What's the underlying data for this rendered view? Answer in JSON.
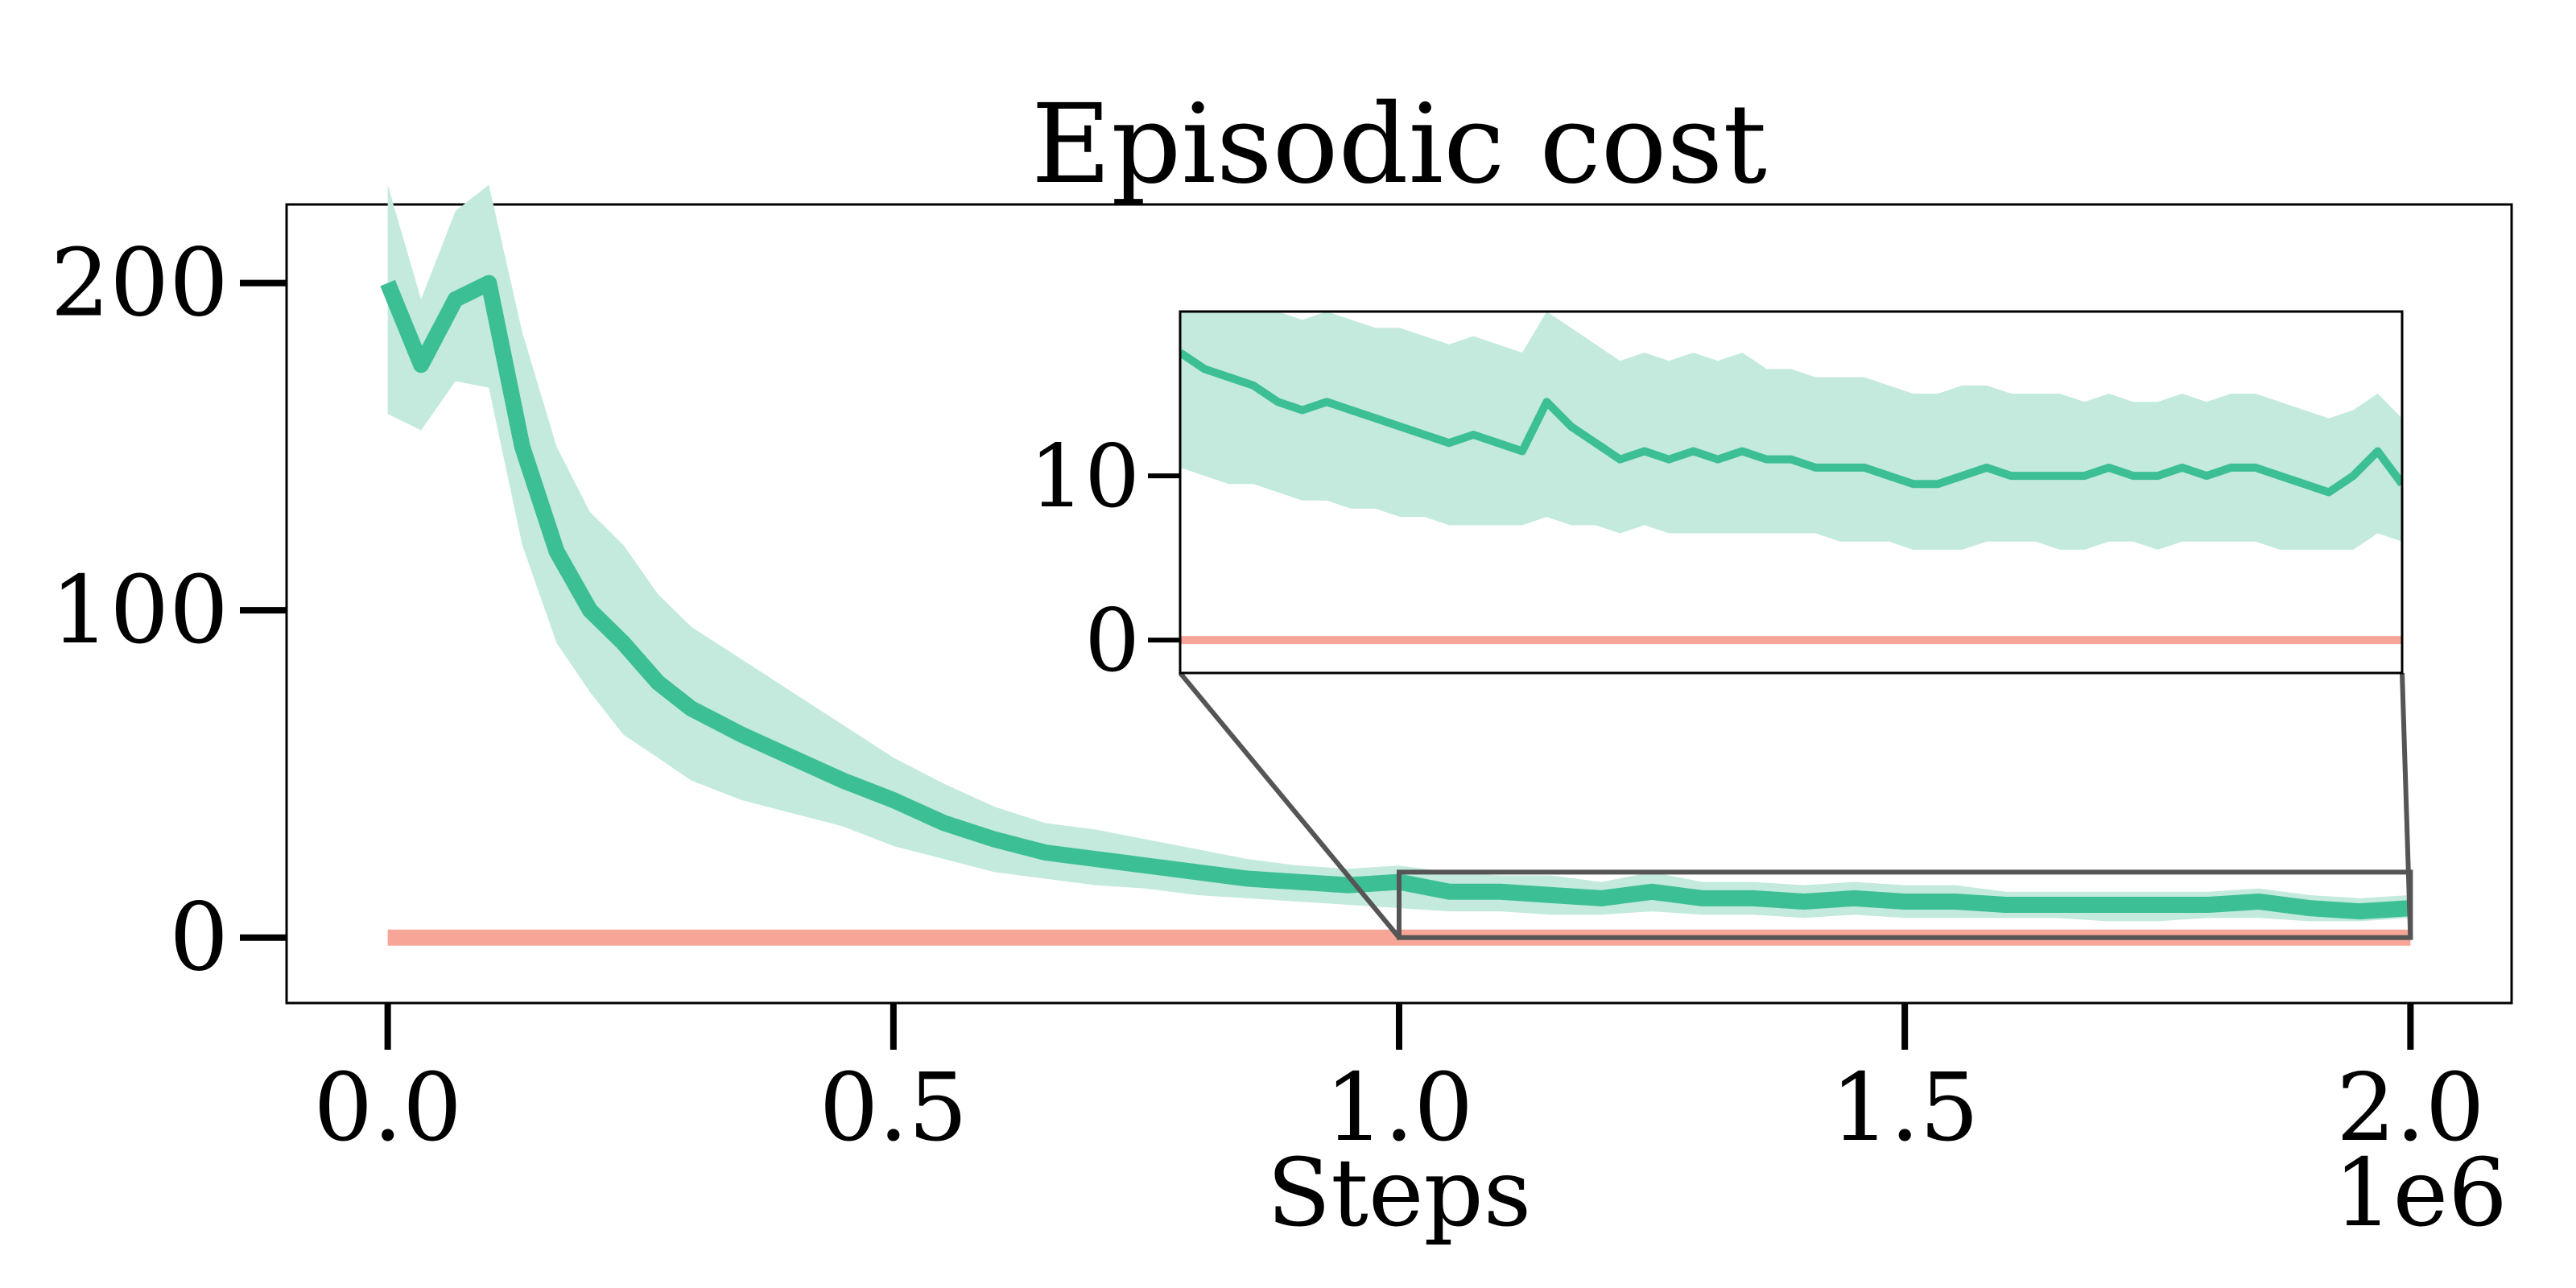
{
  "chart_data": {
    "type": "line",
    "title": "Episodic cost",
    "xlabel": "Steps",
    "ylabel": "",
    "x_offset_label": "1e6",
    "xlim": [
      -0.1,
      2.1
    ],
    "ylim": [
      -20,
      224
    ],
    "xticks": [
      0.0,
      0.5,
      1.0,
      1.5,
      2.0
    ],
    "xtick_labels": [
      "0.0",
      "0.5",
      "1.0",
      "1.5",
      "2.0"
    ],
    "yticks": [
      0,
      100,
      200
    ],
    "ytick_labels": [
      "0",
      "100",
      "200"
    ],
    "grid": false,
    "legend": "none",
    "colors": {
      "main": "#3dbf96",
      "band": "#c3eadc",
      "limit": "#f7a596",
      "zoom_box": "#555555"
    },
    "x": [
      0.0,
      0.033,
      0.067,
      0.1,
      0.133,
      0.167,
      0.2,
      0.233,
      0.267,
      0.3,
      0.35,
      0.4,
      0.45,
      0.5,
      0.55,
      0.6,
      0.65,
      0.7,
      0.75,
      0.8,
      0.85,
      0.9,
      0.95,
      1.0,
      1.05,
      1.1,
      1.15,
      1.2,
      1.25,
      1.3,
      1.35,
      1.4,
      1.45,
      1.5,
      1.55,
      1.6,
      1.65,
      1.7,
      1.75,
      1.8,
      1.85,
      1.9,
      1.95,
      2.0
    ],
    "series": [
      {
        "values": [
          200,
          175,
          195,
          200,
          150,
          118,
          100,
          90,
          78,
          70,
          62,
          55,
          48,
          42,
          35,
          30,
          26,
          24,
          22,
          20,
          18,
          17,
          16,
          17,
          14,
          14,
          13,
          12,
          14,
          12,
          12,
          11,
          12,
          11,
          11,
          10,
          10,
          10,
          10,
          10,
          11,
          9,
          8,
          9
        ]
      },
      {
        "values": [
          0,
          0,
          0,
          0,
          0,
          0,
          0,
          0,
          0,
          0,
          0,
          0,
          0,
          0,
          0,
          0,
          0,
          0,
          0,
          0,
          0,
          0,
          0,
          0,
          0,
          0,
          0,
          0,
          0,
          0,
          0,
          0,
          0,
          0,
          0,
          0,
          0,
          0,
          0,
          0,
          0,
          0,
          0,
          0
        ]
      }
    ],
    "band": {
      "lower": [
        160,
        155,
        170,
        168,
        120,
        90,
        75,
        62,
        55,
        48,
        42,
        38,
        34,
        28,
        24,
        20,
        18,
        16,
        15,
        13,
        12,
        11,
        10,
        9,
        8,
        8,
        7,
        7,
        8,
        7,
        7,
        6,
        7,
        6,
        6,
        6,
        6,
        5,
        5,
        6,
        6,
        5,
        5,
        6
      ],
      "upper": [
        230,
        195,
        222,
        230,
        185,
        150,
        130,
        120,
        105,
        95,
        85,
        75,
        65,
        55,
        47,
        40,
        35,
        33,
        30,
        27,
        24,
        22,
        21,
        22,
        20,
        19,
        19,
        17,
        20,
        17,
        17,
        16,
        17,
        16,
        16,
        14,
        14,
        14,
        14,
        14,
        15,
        13,
        12,
        13
      ]
    },
    "inset": {
      "xlim": [
        1.0,
        2.0
      ],
      "ylim": [
        -2,
        20
      ],
      "yticks": [
        0,
        10
      ],
      "ytick_labels": [
        "0",
        "10"
      ],
      "x": [
        1.0,
        1.02,
        1.04,
        1.06,
        1.08,
        1.1,
        1.12,
        1.14,
        1.16,
        1.18,
        1.2,
        1.22,
        1.24,
        1.26,
        1.28,
        1.3,
        1.32,
        1.34,
        1.36,
        1.38,
        1.4,
        1.42,
        1.44,
        1.46,
        1.48,
        1.5,
        1.52,
        1.54,
        1.56,
        1.58,
        1.6,
        1.62,
        1.64,
        1.66,
        1.68,
        1.7,
        1.72,
        1.74,
        1.76,
        1.78,
        1.8,
        1.82,
        1.84,
        1.86,
        1.88,
        1.9,
        1.92,
        1.94,
        1.96,
        1.98,
        2.0
      ],
      "values": [
        17.5,
        16.5,
        16.0,
        15.5,
        14.5,
        14.0,
        14.5,
        14.0,
        13.5,
        13.0,
        12.5,
        12.0,
        12.5,
        12.0,
        11.5,
        14.5,
        13.0,
        12.0,
        11.0,
        11.5,
        11.0,
        11.5,
        11.0,
        11.5,
        11.0,
        11.0,
        10.5,
        10.5,
        10.5,
        10.0,
        9.5,
        9.5,
        10.0,
        10.5,
        10.0,
        10.0,
        10.0,
        10.0,
        10.5,
        10.0,
        10.0,
        10.5,
        10.0,
        10.5,
        10.5,
        10.0,
        9.5,
        9.0,
        10.0,
        11.5,
        9.5
      ],
      "lower": [
        10.5,
        10.0,
        9.5,
        9.5,
        9.0,
        8.5,
        8.5,
        8.0,
        8.0,
        7.5,
        7.5,
        7.0,
        7.0,
        7.0,
        7.0,
        7.5,
        7.0,
        7.0,
        6.5,
        7.0,
        6.5,
        6.5,
        6.5,
        6.5,
        6.5,
        6.5,
        6.5,
        6.0,
        6.0,
        6.0,
        5.5,
        5.5,
        5.5,
        6.0,
        6.0,
        6.0,
        5.5,
        5.5,
        6.0,
        6.0,
        5.5,
        6.0,
        6.0,
        6.0,
        6.0,
        5.5,
        5.5,
        5.5,
        5.5,
        6.5,
        6.0
      ],
      "upper": [
        20.0,
        20.0,
        20.0,
        20.0,
        20.0,
        19.5,
        20.0,
        19.5,
        19.0,
        19.0,
        18.5,
        18.0,
        18.5,
        18.0,
        17.5,
        20.0,
        19.0,
        18.0,
        17.0,
        17.5,
        17.0,
        17.5,
        17.0,
        17.5,
        16.5,
        16.5,
        16.0,
        16.0,
        16.0,
        15.5,
        15.0,
        15.0,
        15.5,
        15.5,
        15.0,
        15.0,
        15.0,
        14.5,
        15.0,
        14.5,
        14.5,
        15.0,
        14.5,
        15.0,
        15.0,
        14.5,
        14.0,
        13.5,
        14.0,
        15.0,
        13.5
      ]
    },
    "zoom_region": {
      "x": [
        1.0,
        2.0
      ],
      "y": [
        0,
        20
      ]
    }
  }
}
